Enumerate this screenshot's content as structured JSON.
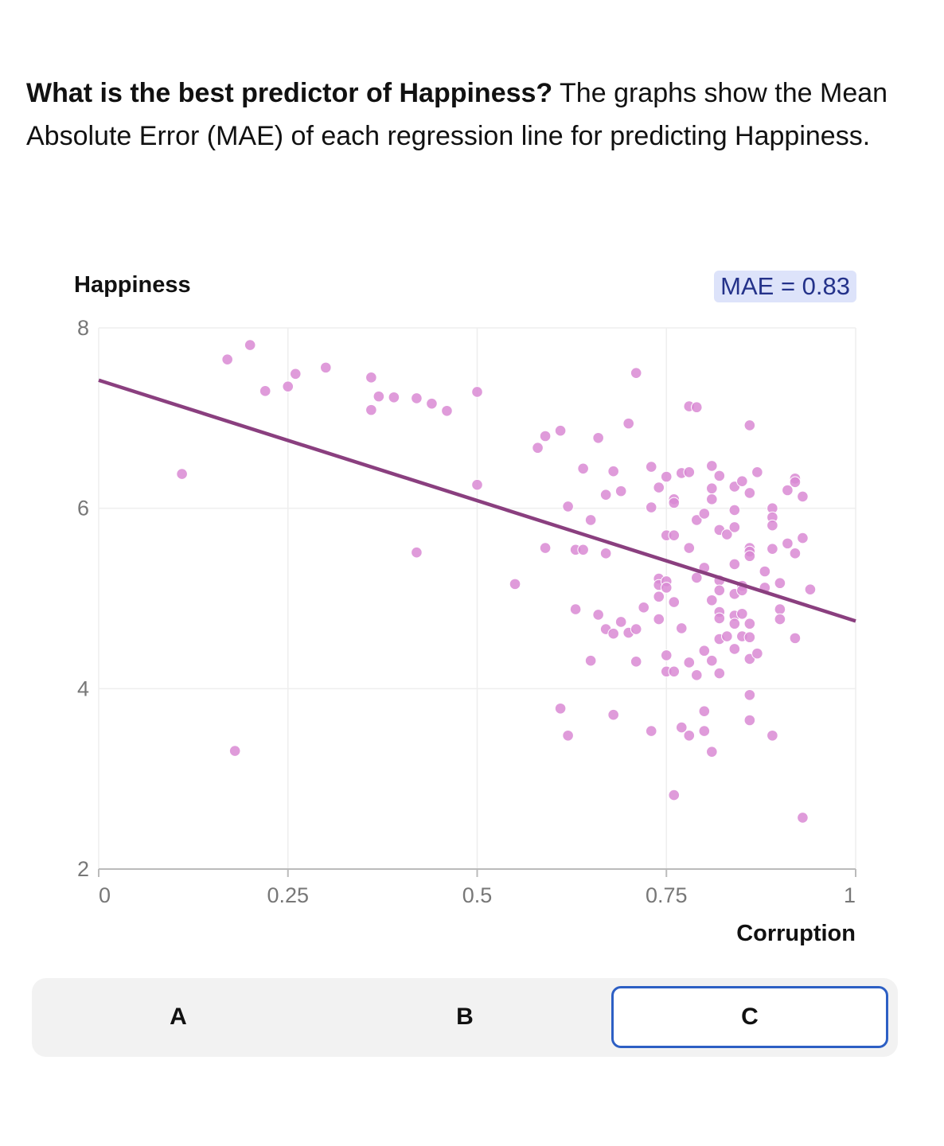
{
  "question": {
    "bold": "What is the best predictor of Happiness?",
    "rest": " The graphs show the Mean Absolute Error (MAE) of each regression line for predicting Happiness."
  },
  "mae_label": "MAE = 0.83",
  "tabs": [
    {
      "label": "A",
      "selected": false
    },
    {
      "label": "B",
      "selected": false
    },
    {
      "label": "C",
      "selected": true
    }
  ],
  "colors": {
    "point": "#d98ad4",
    "line": "#8a3f7f",
    "badge_bg": "#dde3fa",
    "badge_text": "#24328a",
    "tab_selected_border": "#2d5fc4"
  },
  "chart_data": {
    "type": "scatter",
    "title": "",
    "xlabel": "Corruption",
    "ylabel": "Happiness",
    "xlim": [
      0,
      1
    ],
    "ylim": [
      2,
      8
    ],
    "xticks": [
      0,
      0.25,
      0.5,
      0.75,
      1
    ],
    "xtick_labels": [
      "0",
      "0.25",
      "0.5",
      "0.75",
      "1"
    ],
    "yticks": [
      2,
      4,
      6,
      8
    ],
    "ytick_labels": [
      "2",
      "4",
      "6",
      "8"
    ],
    "grid": true,
    "regression_line": {
      "x": [
        0,
        1
      ],
      "y": [
        7.42,
        4.75
      ]
    },
    "points": [
      [
        0.11,
        6.38
      ],
      [
        0.17,
        7.65
      ],
      [
        0.2,
        7.81
      ],
      [
        0.18,
        3.31
      ],
      [
        0.22,
        7.3
      ],
      [
        0.25,
        7.35
      ],
      [
        0.26,
        7.49
      ],
      [
        0.3,
        7.56
      ],
      [
        0.36,
        7.45
      ],
      [
        0.36,
        7.09
      ],
      [
        0.37,
        7.24
      ],
      [
        0.39,
        7.23
      ],
      [
        0.42,
        7.22
      ],
      [
        0.44,
        7.16
      ],
      [
        0.46,
        7.08
      ],
      [
        0.42,
        5.51
      ],
      [
        0.5,
        7.29
      ],
      [
        0.5,
        6.26
      ],
      [
        0.55,
        5.16
      ],
      [
        0.58,
        6.67
      ],
      [
        0.59,
        6.8
      ],
      [
        0.59,
        5.56
      ],
      [
        0.61,
        6.86
      ],
      [
        0.61,
        3.78
      ],
      [
        0.62,
        6.02
      ],
      [
        0.62,
        3.48
      ],
      [
        0.63,
        5.54
      ],
      [
        0.63,
        4.88
      ],
      [
        0.64,
        6.44
      ],
      [
        0.64,
        5.54
      ],
      [
        0.65,
        5.87
      ],
      [
        0.65,
        4.31
      ],
      [
        0.66,
        6.78
      ],
      [
        0.66,
        4.82
      ],
      [
        0.67,
        6.15
      ],
      [
        0.67,
        5.5
      ],
      [
        0.67,
        4.66
      ],
      [
        0.68,
        6.41
      ],
      [
        0.68,
        4.61
      ],
      [
        0.68,
        3.71
      ],
      [
        0.69,
        6.19
      ],
      [
        0.69,
        4.74
      ],
      [
        0.7,
        6.94
      ],
      [
        0.7,
        4.62
      ],
      [
        0.71,
        7.5
      ],
      [
        0.71,
        4.66
      ],
      [
        0.71,
        4.3
      ],
      [
        0.72,
        4.9
      ],
      [
        0.73,
        6.46
      ],
      [
        0.73,
        6.01
      ],
      [
        0.73,
        3.53
      ],
      [
        0.74,
        6.23
      ],
      [
        0.74,
        5.22
      ],
      [
        0.74,
        5.15
      ],
      [
        0.74,
        5.02
      ],
      [
        0.74,
        4.77
      ],
      [
        0.75,
        6.35
      ],
      [
        0.75,
        5.7
      ],
      [
        0.75,
        5.19
      ],
      [
        0.75,
        5.12
      ],
      [
        0.75,
        4.37
      ],
      [
        0.75,
        4.19
      ],
      [
        0.76,
        6.1
      ],
      [
        0.76,
        6.06
      ],
      [
        0.76,
        5.7
      ],
      [
        0.76,
        4.96
      ],
      [
        0.76,
        4.19
      ],
      [
        0.76,
        2.82
      ],
      [
        0.77,
        6.39
      ],
      [
        0.77,
        4.67
      ],
      [
        0.77,
        3.57
      ],
      [
        0.78,
        7.13
      ],
      [
        0.78,
        6.4
      ],
      [
        0.78,
        5.56
      ],
      [
        0.78,
        4.29
      ],
      [
        0.78,
        3.48
      ],
      [
        0.79,
        7.12
      ],
      [
        0.79,
        5.87
      ],
      [
        0.79,
        5.23
      ],
      [
        0.79,
        4.15
      ],
      [
        0.8,
        5.94
      ],
      [
        0.8,
        5.34
      ],
      [
        0.8,
        4.42
      ],
      [
        0.8,
        3.75
      ],
      [
        0.8,
        3.53
      ],
      [
        0.81,
        6.47
      ],
      [
        0.81,
        6.22
      ],
      [
        0.81,
        6.1
      ],
      [
        0.81,
        4.98
      ],
      [
        0.81,
        4.31
      ],
      [
        0.81,
        3.3
      ],
      [
        0.82,
        6.36
      ],
      [
        0.82,
        5.76
      ],
      [
        0.82,
        5.2
      ],
      [
        0.82,
        5.09
      ],
      [
        0.82,
        4.85
      ],
      [
        0.82,
        4.78
      ],
      [
        0.82,
        4.55
      ],
      [
        0.82,
        4.17
      ],
      [
        0.83,
        5.71
      ],
      [
        0.83,
        4.58
      ],
      [
        0.84,
        6.24
      ],
      [
        0.84,
        5.98
      ],
      [
        0.84,
        5.79
      ],
      [
        0.84,
        5.38
      ],
      [
        0.84,
        5.05
      ],
      [
        0.84,
        4.81
      ],
      [
        0.84,
        4.72
      ],
      [
        0.84,
        4.44
      ],
      [
        0.85,
        6.3
      ],
      [
        0.85,
        5.14
      ],
      [
        0.85,
        5.09
      ],
      [
        0.85,
        4.83
      ],
      [
        0.85,
        4.58
      ],
      [
        0.86,
        6.92
      ],
      [
        0.86,
        6.17
      ],
      [
        0.86,
        5.56
      ],
      [
        0.86,
        5.52
      ],
      [
        0.86,
        5.47
      ],
      [
        0.86,
        4.72
      ],
      [
        0.86,
        4.57
      ],
      [
        0.86,
        4.33
      ],
      [
        0.86,
        3.93
      ],
      [
        0.86,
        3.65
      ],
      [
        0.87,
        6.4
      ],
      [
        0.87,
        4.39
      ],
      [
        0.88,
        5.3
      ],
      [
        0.88,
        5.12
      ],
      [
        0.89,
        6.0
      ],
      [
        0.89,
        5.9
      ],
      [
        0.89,
        5.81
      ],
      [
        0.89,
        5.55
      ],
      [
        0.89,
        3.48
      ],
      [
        0.9,
        5.17
      ],
      [
        0.9,
        4.88
      ],
      [
        0.9,
        4.77
      ],
      [
        0.91,
        6.2
      ],
      [
        0.91,
        5.61
      ],
      [
        0.92,
        6.33
      ],
      [
        0.92,
        6.29
      ],
      [
        0.92,
        5.5
      ],
      [
        0.92,
        4.56
      ],
      [
        0.93,
        6.13
      ],
      [
        0.93,
        5.67
      ],
      [
        0.93,
        2.57
      ],
      [
        0.94,
        5.1
      ]
    ]
  }
}
